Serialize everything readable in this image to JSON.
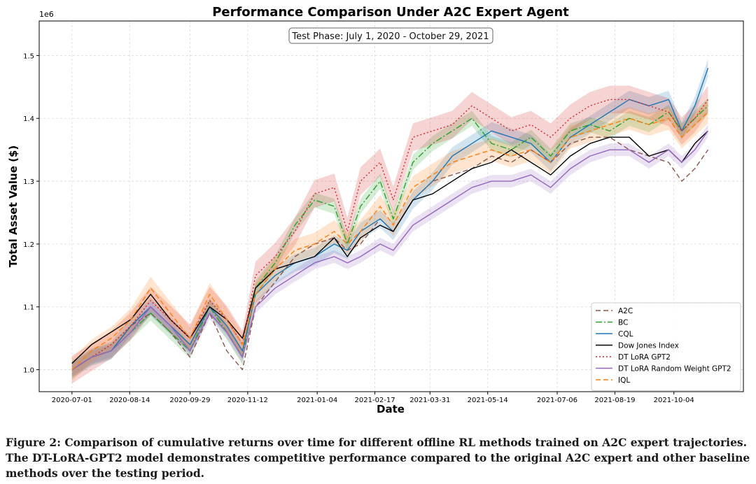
{
  "chart_data": {
    "type": "line",
    "title": "Performance Comparison Under A2C Expert Agent",
    "annotation": "Test Phase: July 1, 2020 - October 29, 2021",
    "xlabel": "Date",
    "ylabel": "Total Asset Value ($)",
    "y_multiplier_label": "1e6",
    "ylim": [
      0.965,
      1.555
    ],
    "yticks": [
      1.0,
      1.1,
      1.2,
      1.3,
      1.4,
      1.5
    ],
    "ytick_labels": [
      "1.0",
      "1.1",
      "1.2",
      "1.3",
      "1.4",
      "1.5"
    ],
    "xlim_days": [
      -25,
      512
    ],
    "xtick_days": [
      0,
      44,
      90,
      134,
      187,
      231,
      273,
      317,
      370,
      414,
      459
    ],
    "xtick_labels": [
      "2020-07-01",
      "2020-08-14",
      "2020-09-29",
      "2020-11-12",
      "2021-01-04",
      "2021-02-17",
      "2021-03-31",
      "2021-05-14",
      "2021-07-06",
      "2021-08-19",
      "2021-10-04"
    ],
    "grid": true,
    "legend_position": "lower-right",
    "x_days": [
      0,
      15,
      30,
      45,
      60,
      75,
      90,
      105,
      118,
      130,
      140,
      155,
      170,
      185,
      200,
      210,
      220,
      235,
      245,
      260,
      275,
      290,
      305,
      320,
      335,
      350,
      365,
      380,
      395,
      410,
      425,
      440,
      455,
      465,
      475,
      485
    ],
    "series": [
      {
        "name": "A2C",
        "color": "#8c564b",
        "dash": "7,4",
        "band": 0,
        "values": [
          1.0,
          1.02,
          1.03,
          1.07,
          1.09,
          1.06,
          1.02,
          1.09,
          1.03,
          1.0,
          1.1,
          1.14,
          1.18,
          1.2,
          1.21,
          1.19,
          1.2,
          1.24,
          1.22,
          1.27,
          1.3,
          1.31,
          1.32,
          1.34,
          1.33,
          1.35,
          1.33,
          1.36,
          1.37,
          1.37,
          1.35,
          1.34,
          1.33,
          1.3,
          1.32,
          1.35
        ]
      },
      {
        "name": "BC",
        "color": "#2ca02c",
        "dash": "9,3,2,3",
        "band": 0.012,
        "values": [
          1.0,
          1.02,
          1.03,
          1.06,
          1.09,
          1.06,
          1.03,
          1.1,
          1.06,
          1.02,
          1.13,
          1.17,
          1.23,
          1.27,
          1.26,
          1.2,
          1.26,
          1.3,
          1.24,
          1.33,
          1.36,
          1.38,
          1.4,
          1.36,
          1.35,
          1.37,
          1.34,
          1.38,
          1.39,
          1.38,
          1.4,
          1.39,
          1.41,
          1.38,
          1.4,
          1.42
        ]
      },
      {
        "name": "CQL",
        "color": "#1f77b4",
        "dash": "",
        "band": 0.014,
        "values": [
          1.0,
          1.02,
          1.03,
          1.07,
          1.1,
          1.07,
          1.04,
          1.1,
          1.07,
          1.03,
          1.12,
          1.15,
          1.17,
          1.18,
          1.2,
          1.19,
          1.22,
          1.24,
          1.22,
          1.27,
          1.3,
          1.34,
          1.36,
          1.38,
          1.37,
          1.36,
          1.33,
          1.37,
          1.39,
          1.41,
          1.43,
          1.42,
          1.43,
          1.38,
          1.42,
          1.48
        ]
      },
      {
        "name": "Dow Jones Index",
        "color": "#000000",
        "dash": "",
        "band": 0,
        "values": [
          1.01,
          1.04,
          1.06,
          1.08,
          1.12,
          1.08,
          1.05,
          1.1,
          1.08,
          1.05,
          1.13,
          1.16,
          1.17,
          1.18,
          1.21,
          1.18,
          1.21,
          1.23,
          1.22,
          1.27,
          1.28,
          1.3,
          1.32,
          1.33,
          1.35,
          1.33,
          1.31,
          1.34,
          1.36,
          1.37,
          1.37,
          1.34,
          1.35,
          1.33,
          1.36,
          1.38
        ]
      },
      {
        "name": "DT LoRA GPT2",
        "color": "#d62728",
        "dash": "2,3",
        "band": 0.022,
        "values": [
          1.0,
          1.02,
          1.04,
          1.07,
          1.11,
          1.08,
          1.05,
          1.11,
          1.08,
          1.04,
          1.15,
          1.18,
          1.22,
          1.28,
          1.29,
          1.22,
          1.3,
          1.33,
          1.27,
          1.37,
          1.38,
          1.39,
          1.42,
          1.4,
          1.38,
          1.39,
          1.37,
          1.4,
          1.42,
          1.43,
          1.43,
          1.42,
          1.41,
          1.38,
          1.4,
          1.43
        ]
      },
      {
        "name": "DT LoRA Random Weight GPT2",
        "color": "#9467bd",
        "dash": "",
        "band": 0.01,
        "values": [
          1.0,
          1.02,
          1.03,
          1.06,
          1.1,
          1.07,
          1.03,
          1.09,
          1.06,
          1.02,
          1.1,
          1.13,
          1.15,
          1.17,
          1.18,
          1.17,
          1.18,
          1.2,
          1.19,
          1.23,
          1.25,
          1.27,
          1.29,
          1.3,
          1.3,
          1.31,
          1.29,
          1.32,
          1.34,
          1.35,
          1.35,
          1.33,
          1.35,
          1.33,
          1.35,
          1.38
        ]
      },
      {
        "name": "IQL",
        "color": "#ff7f0e",
        "dash": "7,4",
        "band": 0.018,
        "values": [
          1.0,
          1.03,
          1.05,
          1.08,
          1.13,
          1.09,
          1.05,
          1.12,
          1.08,
          1.04,
          1.12,
          1.16,
          1.19,
          1.2,
          1.22,
          1.2,
          1.22,
          1.26,
          1.23,
          1.29,
          1.31,
          1.33,
          1.34,
          1.35,
          1.34,
          1.35,
          1.33,
          1.37,
          1.38,
          1.39,
          1.4,
          1.39,
          1.4,
          1.37,
          1.39,
          1.41
        ]
      }
    ]
  },
  "caption": {
    "line1": "Figure 2: Comparison of cumulative returns over time for different offline RL methods trained on A2C expert trajectories.",
    "line2": "The DT-LoRA-GPT2 model demonstrates competitive performance compared to the original A2C expert and other baseline",
    "line3": "methods over the testing period."
  }
}
